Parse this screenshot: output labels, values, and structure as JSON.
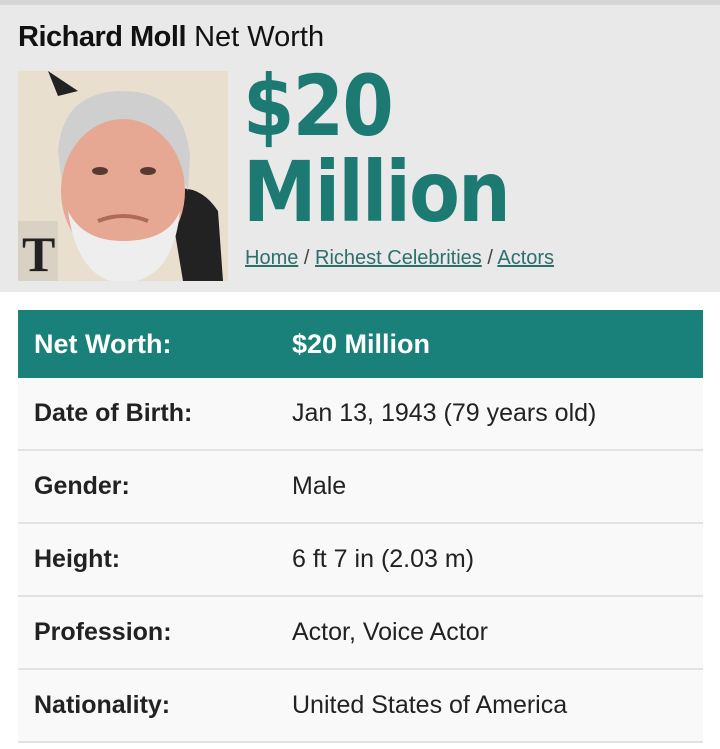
{
  "header": {
    "name": "Richard Moll",
    "title_suffix": "Net Worth",
    "net_worth_line1": "$20",
    "net_worth_line2": "Million"
  },
  "breadcrumb": [
    {
      "label": "Home"
    },
    {
      "label": "Richest Celebrities"
    },
    {
      "label": "Actors"
    }
  ],
  "breadcrumb_separator": "/",
  "colors": {
    "accent": "#1a807a",
    "background": "#e9e9e9"
  },
  "facts": {
    "header": {
      "label": "Net Worth:",
      "value": "$20 Million"
    },
    "rows": [
      {
        "label": "Date of Birth:",
        "value": "Jan 13, 1943 (79 years old)"
      },
      {
        "label": "Gender:",
        "value": "Male"
      },
      {
        "label": "Height:",
        "value": "6 ft 7 in (2.03 m)"
      },
      {
        "label": "Profession:",
        "value": "Actor, Voice Actor"
      },
      {
        "label": "Nationality:",
        "value": "United States of America"
      }
    ]
  }
}
